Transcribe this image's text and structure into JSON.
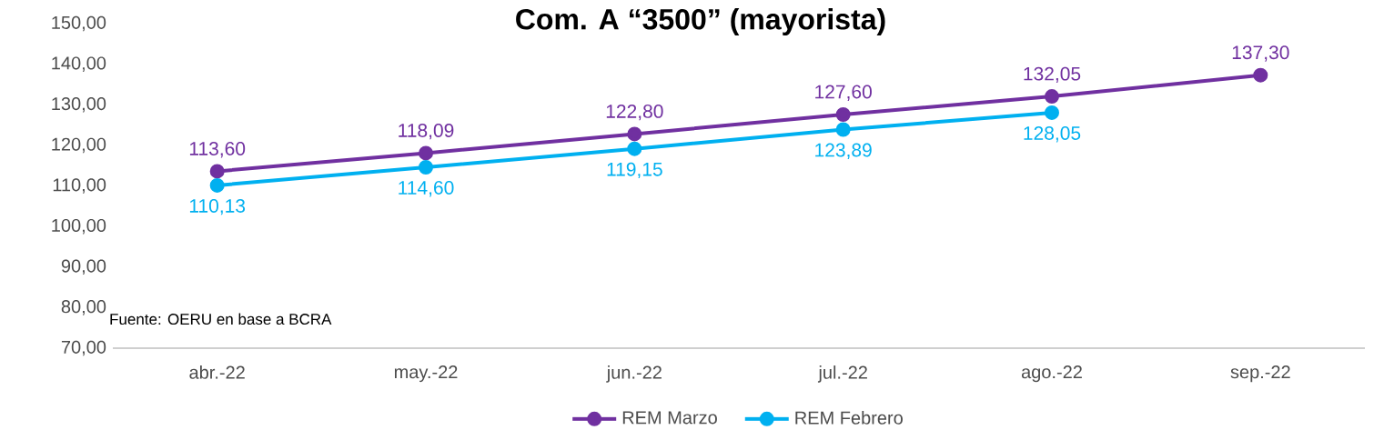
{
  "chart_data": {
    "type": "line",
    "title": "Com. A “3500” (mayorista)",
    "categories": [
      "abr.-22",
      "may.-22",
      "jun.-22",
      "jul.-22",
      "ago.-22",
      "sep.-22"
    ],
    "series": [
      {
        "name": "REM Marzo",
        "color": "#7030a0",
        "values": [
          113.6,
          118.09,
          122.8,
          127.6,
          132.05,
          137.3
        ],
        "value_labels": [
          "113,60",
          "118,09",
          "122,80",
          "127,60",
          "132,05",
          "137,30"
        ]
      },
      {
        "name": "REM Febrero",
        "color": "#00b0f0",
        "values": [
          110.13,
          114.6,
          119.15,
          123.89,
          128.05,
          null
        ],
        "value_labels": [
          "110,13",
          "114,60",
          "119,15",
          "123,89",
          "128,05",
          null
        ]
      }
    ],
    "ylim": [
      70,
      150
    ],
    "yticks": [
      {
        "value": 70,
        "label": "70,00"
      },
      {
        "value": 80,
        "label": "80,00"
      },
      {
        "value": 90,
        "label": "90,00"
      },
      {
        "value": 100,
        "label": "100,00"
      },
      {
        "value": 110,
        "label": "110,00"
      },
      {
        "value": 120,
        "label": "120,00"
      },
      {
        "value": 130,
        "label": "130,00"
      },
      {
        "value": 140,
        "label": "140,00"
      },
      {
        "value": 150,
        "label": "150,00"
      }
    ],
    "grid": false,
    "legend": "bottom",
    "marker": "circle",
    "line_style": "solid",
    "annotations": [
      "Fuente: OERU en base a  BCRA"
    ]
  }
}
